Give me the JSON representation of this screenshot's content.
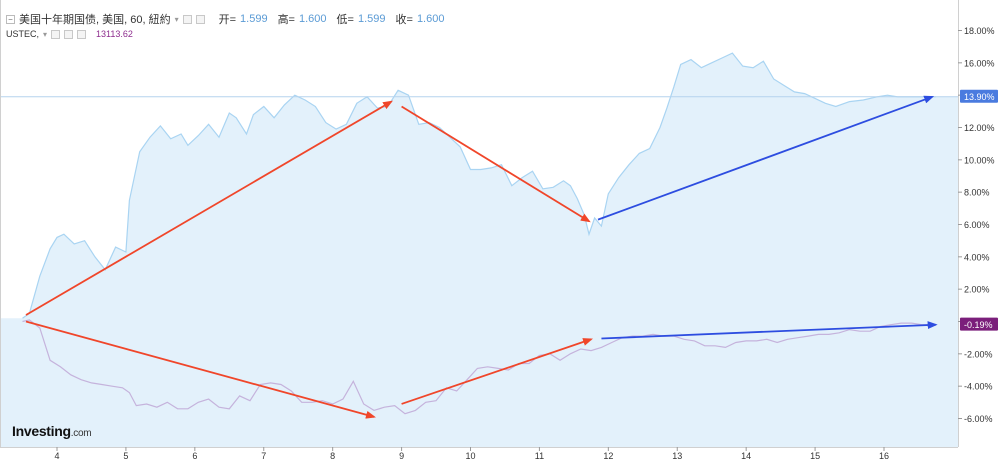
{
  "legend": {
    "title": "美国十年期国债, 美国, 60, 紐約",
    "open_label": "开=",
    "open": "1.599",
    "high_label": "高=",
    "high": "1.600",
    "low_label": "低=",
    "low": "1.599",
    "close_label": "收=",
    "close": "1.600",
    "ustec_label": "USTEC,",
    "ustec_value": "13113.62"
  },
  "brand": {
    "name": "Investing",
    "suffix": ".com"
  },
  "colors": {
    "area_fill": "#e3f1fb",
    "area_line": "#a9d4f2",
    "ustec_line": "#c5b3dc",
    "red_arrow": "#f0462a",
    "blue_arrow": "#2d4de0",
    "badge_blue": "#4a7bdf",
    "badge_purple": "#7b1f7b"
  },
  "chart_data": {
    "type": "area",
    "ylim": [
      -7,
      19
    ],
    "yticks": [
      "18.00%",
      "16.00%",
      "14.00%",
      "12.00%",
      "10.00%",
      "8.00%",
      "6.00%",
      "4.00%",
      "2.00%",
      "0.00%",
      "-2.00%",
      "-4.00%",
      "-6.00%"
    ],
    "yvalues": [
      18,
      16,
      14,
      12,
      10,
      8,
      6,
      4,
      2,
      0,
      -2,
      -4,
      -6
    ],
    "xticks": [
      "4",
      "5",
      "6",
      "7",
      "8",
      "9",
      "10",
      "11",
      "12",
      "13",
      "14",
      "15",
      "16"
    ],
    "xvalues": [
      4,
      5,
      6,
      7,
      8,
      9,
      10,
      11,
      12,
      13,
      14,
      15,
      16
    ],
    "xlim": [
      3.45,
      16.8
    ],
    "badges": [
      {
        "label": "13.90%",
        "value": 13.9,
        "series": "10y"
      },
      {
        "label": "-0.19%",
        "value": -0.19,
        "series": "ustec"
      }
    ],
    "series": [
      {
        "x": [
          3.5,
          3.6,
          3.75,
          3.9,
          4.0,
          4.1,
          4.25,
          4.4,
          4.55,
          4.7,
          4.85,
          5.0,
          5.05,
          5.2,
          5.35,
          5.5,
          5.65,
          5.8,
          5.9,
          6.05,
          6.2,
          6.35,
          6.5,
          6.6,
          6.75,
          6.85,
          7.0,
          7.15,
          7.3,
          7.45,
          7.6,
          7.75,
          7.9,
          8.05,
          8.2,
          8.35,
          8.5,
          8.65,
          8.8,
          8.95,
          9.1,
          9.25,
          9.4,
          9.55,
          9.7,
          9.85,
          10.0,
          10.15,
          10.3,
          10.45,
          10.6,
          10.75,
          10.9,
          11.05,
          11.2,
          11.35,
          11.45,
          11.55,
          11.65,
          11.72,
          11.8,
          11.9,
          12.0,
          12.15,
          12.3,
          12.45,
          12.6,
          12.75,
          12.85,
          12.95,
          13.05,
          13.2,
          13.35,
          13.5,
          13.65,
          13.8,
          13.95,
          14.1,
          14.25,
          14.4,
          14.55,
          14.7,
          14.85,
          15.0,
          15.15,
          15.3,
          15.5,
          15.7,
          15.9,
          16.05,
          16.2,
          16.35,
          16.5,
          16.65,
          16.75
        ],
        "values": [
          0.2,
          0.5,
          2.8,
          4.5,
          5.2,
          5.4,
          4.8,
          5.0,
          4.0,
          3.2,
          4.6,
          4.3,
          7.5,
          10.5,
          11.4,
          12.1,
          11.3,
          11.6,
          10.9,
          11.5,
          12.2,
          11.4,
          12.9,
          12.6,
          11.6,
          12.8,
          13.3,
          12.6,
          13.4,
          14.0,
          13.7,
          13.3,
          12.3,
          11.9,
          12.2,
          13.5,
          13.9,
          13.2,
          13.3,
          14.3,
          14.0,
          12.2,
          12.3,
          12.0,
          11.4,
          10.8,
          9.4,
          9.4,
          9.5,
          9.7,
          8.4,
          8.9,
          9.3,
          8.2,
          8.3,
          8.7,
          8.4,
          7.6,
          6.6,
          5.4,
          6.4,
          5.9,
          7.9,
          8.9,
          9.7,
          10.4,
          10.7,
          12.0,
          13.2,
          14.5,
          15.9,
          16.2,
          15.7,
          16.0,
          16.3,
          16.6,
          15.8,
          15.7,
          16.1,
          15.0,
          14.6,
          14.2,
          14.1,
          13.8,
          13.5,
          13.3,
          13.6,
          13.7,
          13.9,
          14.0,
          13.9,
          13.9,
          13.9,
          13.9,
          13.9
        ]
      },
      {
        "x": [
          3.5,
          3.6,
          3.75,
          3.9,
          4.05,
          4.2,
          4.35,
          4.5,
          4.65,
          4.8,
          4.95,
          5.05,
          5.15,
          5.3,
          5.45,
          5.6,
          5.75,
          5.9,
          6.05,
          6.2,
          6.35,
          6.5,
          6.65,
          6.8,
          6.95,
          7.1,
          7.25,
          7.4,
          7.55,
          7.7,
          7.85,
          8.0,
          8.15,
          8.3,
          8.45,
          8.6,
          8.75,
          8.9,
          9.05,
          9.2,
          9.35,
          9.5,
          9.65,
          9.8,
          9.95,
          10.1,
          10.25,
          10.4,
          10.55,
          10.7,
          10.85,
          11.0,
          11.15,
          11.3,
          11.45,
          11.6,
          11.75,
          11.9,
          12.05,
          12.2,
          12.35,
          12.5,
          12.65,
          12.8,
          12.95,
          13.1,
          13.25,
          13.4,
          13.55,
          13.7,
          13.85,
          14.0,
          14.15,
          14.3,
          14.45,
          14.6,
          14.75,
          14.9,
          15.05,
          15.2,
          15.35,
          15.5,
          15.65,
          15.8,
          15.95,
          16.1,
          16.25,
          16.4,
          16.55,
          16.7
        ],
        "values": [
          0.0,
          0.1,
          -0.4,
          -2.4,
          -2.8,
          -3.3,
          -3.6,
          -3.8,
          -3.9,
          -4.0,
          -4.1,
          -4.4,
          -5.2,
          -5.1,
          -5.3,
          -5.0,
          -5.4,
          -5.4,
          -5.0,
          -4.8,
          -5.3,
          -5.4,
          -4.6,
          -4.9,
          -3.9,
          -3.8,
          -3.9,
          -4.3,
          -5.0,
          -5.0,
          -4.9,
          -5.1,
          -4.8,
          -3.7,
          -5.1,
          -5.5,
          -5.3,
          -5.2,
          -5.7,
          -5.5,
          -5.0,
          -4.9,
          -4.1,
          -4.3,
          -3.6,
          -2.9,
          -2.8,
          -2.9,
          -3.0,
          -2.6,
          -2.6,
          -2.1,
          -2.0,
          -2.4,
          -2.0,
          -1.7,
          -1.8,
          -1.6,
          -1.3,
          -1.0,
          -0.9,
          -0.9,
          -0.8,
          -0.9,
          -0.9,
          -1.1,
          -1.2,
          -1.5,
          -1.5,
          -1.6,
          -1.3,
          -1.2,
          -1.2,
          -1.1,
          -1.3,
          -1.1,
          -1.0,
          -0.9,
          -0.8,
          -0.8,
          -0.7,
          -0.5,
          -0.6,
          -0.6,
          -0.3,
          -0.2,
          -0.1,
          -0.1,
          -0.2,
          -0.19
        ]
      }
    ],
    "arrows": [
      {
        "color": "red",
        "from": [
          3.55,
          0.4
        ],
        "to": [
          8.85,
          13.6
        ]
      },
      {
        "color": "red",
        "from": [
          9.0,
          13.3
        ],
        "to": [
          11.72,
          6.2
        ]
      },
      {
        "color": "blue",
        "from": [
          11.85,
          6.3
        ],
        "to": [
          16.7,
          13.9
        ]
      },
      {
        "color": "red",
        "from": [
          3.55,
          0.0
        ],
        "to": [
          8.6,
          -5.9
        ]
      },
      {
        "color": "red",
        "from": [
          9.0,
          -5.1
        ],
        "to": [
          11.75,
          -1.1
        ]
      },
      {
        "color": "blue",
        "from": [
          11.9,
          -1.05
        ],
        "to": [
          16.75,
          -0.2
        ]
      }
    ]
  }
}
